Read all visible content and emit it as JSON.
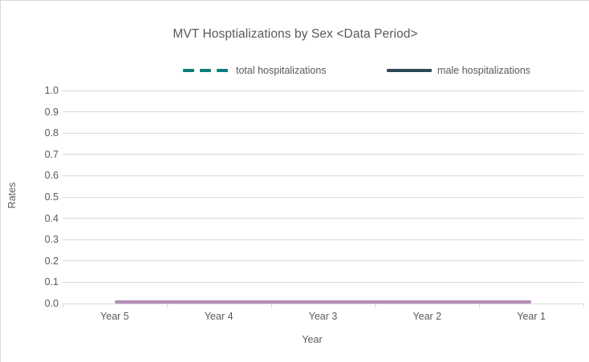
{
  "chart_data": {
    "type": "line",
    "title": "MVT Hosptializations by Sex <Data Period>",
    "xlabel": "Year",
    "ylabel": "Rates",
    "ylim": [
      0,
      1
    ],
    "ytick_labels": [
      "1.0",
      "0.9",
      "0.8",
      "0.7",
      "0.6",
      "0.5",
      "0.4",
      "0.3",
      "0.2",
      "0.1",
      "0.0"
    ],
    "categories": [
      "Year 5",
      "Year 4",
      "Year 3",
      "Year 2",
      "Year 1"
    ],
    "grid": true,
    "legend_position": "top",
    "legend": {
      "entries": [
        {
          "label": "total hospitalizations",
          "style": "dashed",
          "color": "#0E7C7C"
        },
        {
          "label": "male hospitalizations",
          "style": "solid",
          "color": "#2F4858"
        }
      ]
    },
    "series": [
      {
        "name": "total hospitalizations",
        "style": "dashed",
        "color": "#0E7C7C",
        "values": [
          0,
          0,
          0,
          0,
          0
        ],
        "in_legend": true
      },
      {
        "name": "male hospitalizations",
        "style": "solid",
        "color": "#2F4858",
        "values": [
          0,
          0,
          0,
          0,
          0
        ],
        "in_legend": true
      },
      {
        "name": "",
        "style": "solid",
        "color": "#B48FB8",
        "values": [
          0,
          0,
          0,
          0,
          0
        ],
        "in_legend": false,
        "note": "visible flat mauve line drawn at rate 0 across all years"
      }
    ]
  },
  "colors": {
    "text": "#595959",
    "gridline": "#D9D9D9",
    "frame_border": "#D9D9D9",
    "background": "#FFFFFF"
  }
}
